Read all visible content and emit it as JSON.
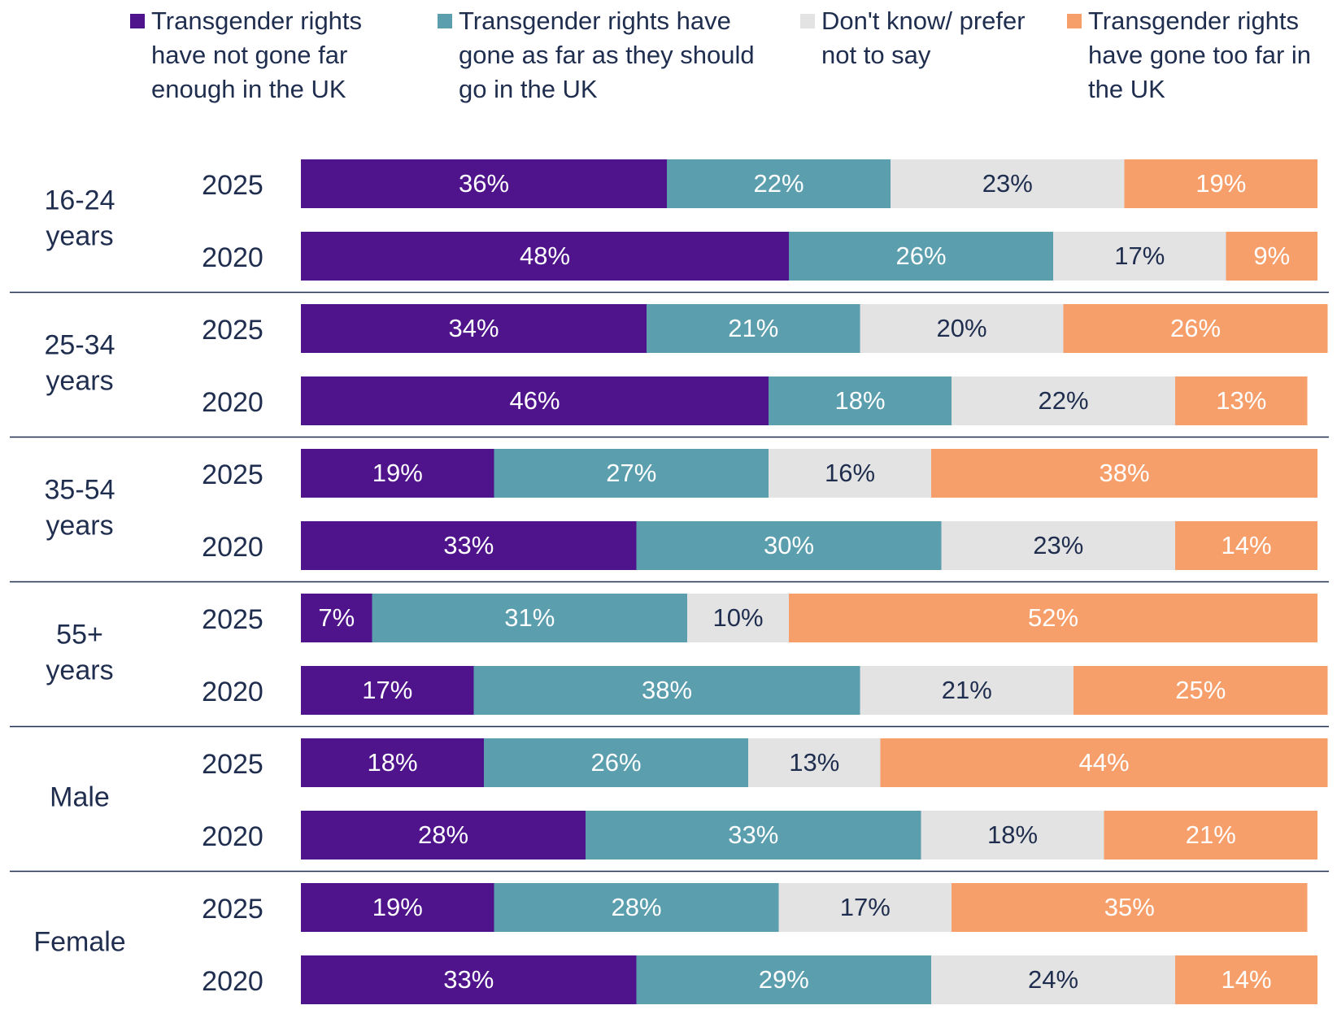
{
  "chart_data": {
    "type": "stacked-bar-horizontal",
    "groups": [
      "16-24 years",
      "25-34 years",
      "35-54 years",
      "55+ years",
      "Male",
      "Female"
    ],
    "categories": [
      "2025",
      "2020",
      "2025",
      "2020",
      "2025",
      "2020",
      "2025",
      "2020",
      "2025",
      "2020",
      "2025",
      "2020"
    ],
    "xlim": [
      0,
      100
    ],
    "series": [
      {
        "name": "Transgender rights have not gone far enough in the UK",
        "color": "#4f148c",
        "label_color": "#ffffff",
        "values": [
          36,
          48,
          34,
          46,
          19,
          33,
          7,
          17,
          18,
          28,
          19,
          33
        ],
        "value_labels": [
          "36%",
          "48%",
          "34%",
          "46%",
          "19%",
          "33%",
          "7%",
          "17%",
          "18%",
          "28%",
          "19%",
          "33%"
        ]
      },
      {
        "name": "Transgender rights have gone as far as they should go in the UK",
        "color": "#5b9eae",
        "label_color": "#ffffff",
        "values": [
          22,
          26,
          21,
          18,
          27,
          30,
          31,
          38,
          26,
          33,
          28,
          29
        ],
        "value_labels": [
          "22%",
          "26%",
          "21%",
          "18%",
          "27%",
          "30%",
          "31%",
          "38%",
          "26%",
          "33%",
          "28%",
          "29%"
        ]
      },
      {
        "name": "Don't know/ prefer not to say",
        "color": "#e3e3e3",
        "label_color": "#1f2d4e",
        "values": [
          23,
          17,
          20,
          22,
          16,
          23,
          10,
          21,
          13,
          18,
          17,
          24
        ],
        "value_labels": [
          "23%",
          "17%",
          "20%",
          "22%",
          "16%",
          "23%",
          "10%",
          "21%",
          "13%",
          "18%",
          "17%",
          "24%"
        ]
      },
      {
        "name": "Transgender rights have gone too far in the UK",
        "color": "#f79f6a",
        "label_color": "#ffffff",
        "values": [
          19,
          9,
          26,
          13,
          38,
          14,
          52,
          25,
          44,
          21,
          35,
          14
        ],
        "value_labels": [
          "19%",
          "9%",
          "26%",
          "13%",
          "38%",
          "14%",
          "52%",
          "25%",
          "44%",
          "21%",
          "35%",
          "14%"
        ]
      }
    ]
  }
}
